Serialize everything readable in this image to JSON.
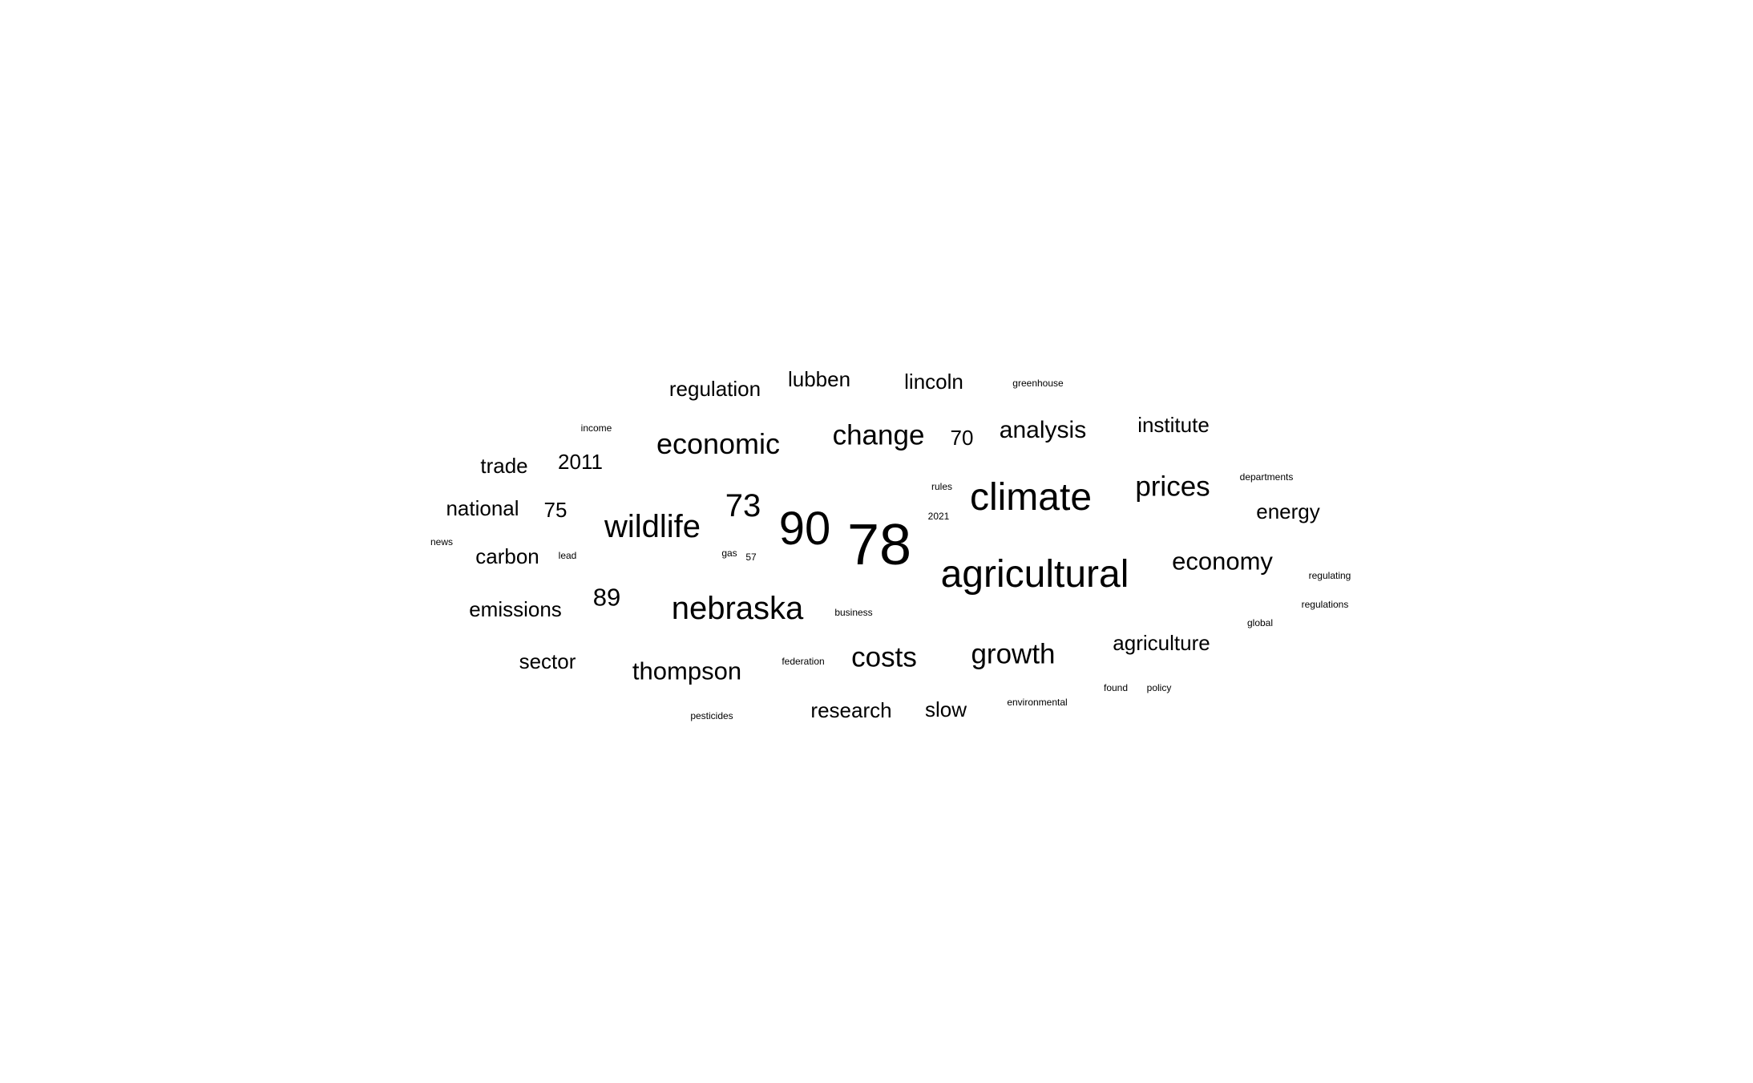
{
  "text_color": "#000000",
  "background_color": "#ffffff",
  "words": [
    {
      "text": "78",
      "weight": 100
    },
    {
      "text": "90",
      "weight": 82
    },
    {
      "text": "agricultural",
      "weight": 70
    },
    {
      "text": "climate",
      "weight": 70
    },
    {
      "text": "nebraska",
      "weight": 58
    },
    {
      "text": "wildlife",
      "weight": 58
    },
    {
      "text": "73",
      "weight": 58
    },
    {
      "text": "economic",
      "weight": 52
    },
    {
      "text": "change",
      "weight": 50
    },
    {
      "text": "prices",
      "weight": 50
    },
    {
      "text": "costs",
      "weight": 50
    },
    {
      "text": "growth",
      "weight": 50
    },
    {
      "text": "economy",
      "weight": 45
    },
    {
      "text": "thompson",
      "weight": 45
    },
    {
      "text": "89",
      "weight": 45
    },
    {
      "text": "analysis",
      "weight": 43
    },
    {
      "text": "agriculture",
      "weight": 40
    },
    {
      "text": "energy",
      "weight": 40
    },
    {
      "text": "emissions",
      "weight": 40
    },
    {
      "text": "research",
      "weight": 40
    },
    {
      "text": "slow",
      "weight": 40
    },
    {
      "text": "regulation",
      "weight": 40
    },
    {
      "text": "lubben",
      "weight": 40
    },
    {
      "text": "lincoln",
      "weight": 40
    },
    {
      "text": "institute",
      "weight": 40
    },
    {
      "text": "trade",
      "weight": 40
    },
    {
      "text": "2011",
      "weight": 40
    },
    {
      "text": "national",
      "weight": 40
    },
    {
      "text": "75",
      "weight": 40
    },
    {
      "text": "carbon",
      "weight": 40
    },
    {
      "text": "sector",
      "weight": 40
    },
    {
      "text": "70",
      "weight": 40
    },
    {
      "text": "greenhouse",
      "weight": 20
    },
    {
      "text": "income",
      "weight": 20
    },
    {
      "text": "departments",
      "weight": 20
    },
    {
      "text": "rules",
      "weight": 20
    },
    {
      "text": "2021",
      "weight": 20
    },
    {
      "text": "news",
      "weight": 20
    },
    {
      "text": "lead",
      "weight": 20
    },
    {
      "text": "gas",
      "weight": 20
    },
    {
      "text": "57",
      "weight": 20
    },
    {
      "text": "regulating",
      "weight": 20
    },
    {
      "text": "regulations",
      "weight": 20
    },
    {
      "text": "business",
      "weight": 20
    },
    {
      "text": "global",
      "weight": 20
    },
    {
      "text": "federation",
      "weight": 20
    },
    {
      "text": "found",
      "weight": 20
    },
    {
      "text": "policy",
      "weight": 20
    },
    {
      "text": "environmental",
      "weight": 20
    },
    {
      "text": "pesticides",
      "weight": 20
    }
  ]
}
